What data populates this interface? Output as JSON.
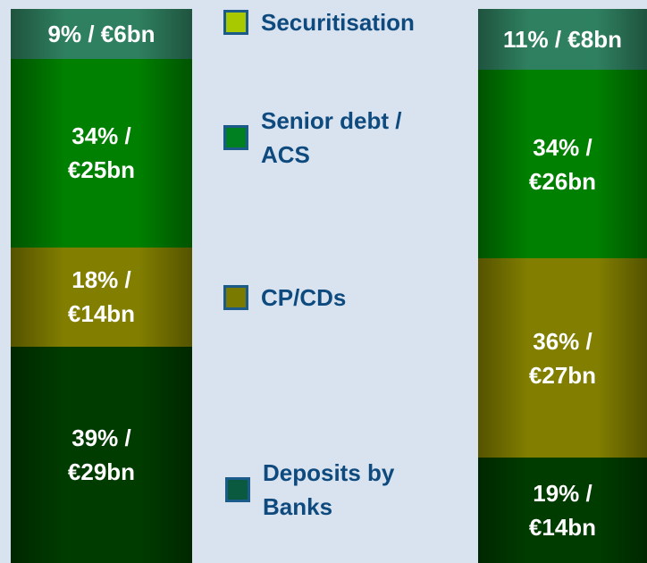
{
  "chart_data": {
    "type": "stacked_bar",
    "categories": [
      null,
      null
    ],
    "series": [
      {
        "name": "Deposits by Banks",
        "color": "#0a5a40",
        "bar_color": "#003c00",
        "values": [
          39,
          19
        ],
        "value_labels": [
          "39% / €29bn",
          "19% / €14bn"
        ]
      },
      {
        "name": "CP/CDs",
        "color": "#7a7a00",
        "bar_color": "#827f00",
        "values": [
          18,
          36
        ],
        "value_labels": [
          "18% / €14bn",
          "36% / €27bn"
        ]
      },
      {
        "name": "Senior debt / ACS",
        "color": "#008020",
        "bar_color": "#008000",
        "values": [
          34,
          34
        ],
        "value_labels": [
          "34% / €25bn",
          "34% / €26bn"
        ]
      },
      {
        "name": "Securitisation",
        "color": "#a8c800",
        "bar_color": "#2f8060",
        "values": [
          9,
          11
        ],
        "value_labels": [
          "9% / €6bn",
          "11% / €8bn"
        ]
      }
    ]
  }
}
